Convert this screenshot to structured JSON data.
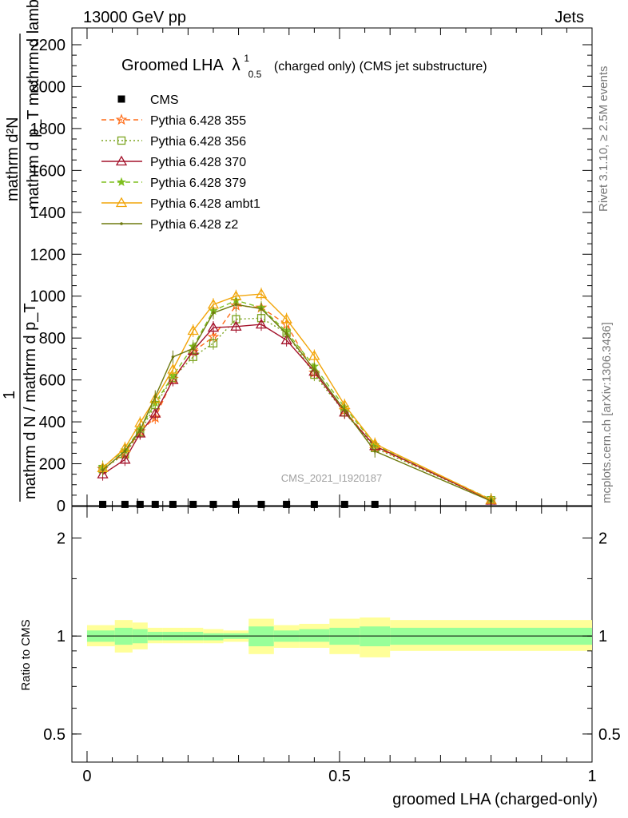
{
  "header": {
    "energy": "13000 GeV pp",
    "process": "Jets"
  },
  "side_labels": {
    "rivet": "Rivet 3.1.10, ≥ 2.5M events",
    "mcplots": "mcplots.cern.ch [arXiv:1306.3436]"
  },
  "chart_data": {
    "type": "line",
    "title_main": "Groomed LHA",
    "title_lambda": "λ",
    "title_sup": "1",
    "title_sub": "0.5",
    "title_suffix": "(charged only) (CMS jet substructure)",
    "watermark": "CMS_2021_I1920187",
    "xlabel": "groomed LHA (charged-only)",
    "ylabel_top_num": "mathrm d²N",
    "ylabel_top_den": "mathrm d p_T mathrm d lambda",
    "ylabel_bottom_num": "1",
    "ylabel_bottom_den": "mathrm d N / mathrm d p_T",
    "ratio_ylabel": "Ratio to CMS",
    "xlim": [
      -0.03,
      1.0
    ],
    "ylim": [
      0,
      2280
    ],
    "ratio_ylim": [
      0.41,
      2.5
    ],
    "x_ticks": [
      {
        "value": 0,
        "label": "0"
      },
      {
        "value": 0.5,
        "label": "0.5"
      },
      {
        "value": 1,
        "label": "1"
      }
    ],
    "y_ticks": [
      {
        "value": 0,
        "label": "0"
      },
      {
        "value": 200,
        "label": "200"
      },
      {
        "value": 400,
        "label": "400"
      },
      {
        "value": 600,
        "label": "600"
      },
      {
        "value": 800,
        "label": "800"
      },
      {
        "value": 1000,
        "label": "1000"
      },
      {
        "value": 1200,
        "label": "1200"
      },
      {
        "value": 1400,
        "label": "1400"
      },
      {
        "value": 1600,
        "label": "1600"
      },
      {
        "value": 1800,
        "label": "1800"
      },
      {
        "value": 2000,
        "label": "2000"
      },
      {
        "value": 2200,
        "label": "2200"
      }
    ],
    "ratio_ticks": [
      {
        "value": 0.5,
        "label": "0.5"
      },
      {
        "value": 1,
        "label": "1"
      },
      {
        "value": 2,
        "label": "2"
      }
    ],
    "x": [
      0.031,
      0.075,
      0.105,
      0.135,
      0.17,
      0.21,
      0.25,
      0.295,
      0.345,
      0.395,
      0.45,
      0.51,
      0.57,
      0.8
    ],
    "data": {
      "name": "CMS",
      "marker": "square",
      "color": "#000000",
      "values": [
        6,
        6,
        6,
        6,
        6,
        6,
        6,
        6,
        6,
        6,
        6,
        6,
        6,
        0
      ]
    },
    "series": [
      {
        "name": "Pythia 6.428 355",
        "color": "#ff6e1a",
        "marker": "star",
        "dash": "6,4",
        "values": [
          175,
          250,
          355,
          420,
          605,
          735,
          805,
          955,
          945,
          865,
          635,
          455,
          280,
          27
        ]
      },
      {
        "name": "Pythia 6.428 356",
        "color": "#7ba31e",
        "marker": "square-open",
        "dash": "2,3",
        "values": [
          175,
          245,
          350,
          480,
          610,
          710,
          775,
          890,
          895,
          825,
          625,
          445,
          275,
          26
        ]
      },
      {
        "name": "Pythia 6.428 370",
        "color": "#a3122a",
        "marker": "triangle-open",
        "dash": "",
        "values": [
          150,
          220,
          345,
          440,
          600,
          740,
          850,
          855,
          865,
          790,
          640,
          445,
          285,
          25
        ]
      },
      {
        "name": "Pythia 6.428 379",
        "color": "#7fbf1f",
        "marker": "star-small",
        "dash": "6,4",
        "values": [
          185,
          265,
          365,
          490,
          620,
          760,
          930,
          980,
          945,
          830,
          665,
          470,
          290,
          30
        ]
      },
      {
        "name": "Pythia 6.428 ambt1",
        "color": "#f2a50a",
        "marker": "triangle-open",
        "dash": "",
        "values": [
          180,
          275,
          395,
          510,
          650,
          835,
          960,
          1000,
          1010,
          890,
          715,
          480,
          295,
          28
        ]
      },
      {
        "name": "Pythia 6.428 z2",
        "color": "#6f7a0f",
        "marker": "dot",
        "dash": "",
        "values": [
          170,
          260,
          360,
          520,
          710,
          750,
          920,
          960,
          940,
          820,
          650,
          455,
          260,
          22
        ]
      }
    ],
    "ratio_bands": {
      "x_edges": [
        0,
        0.055,
        0.09,
        0.12,
        0.15,
        0.19,
        0.23,
        0.27,
        0.32,
        0.37,
        0.42,
        0.48,
        0.54,
        0.6,
        1.0
      ],
      "yellow_lo": [
        0.93,
        0.89,
        0.91,
        0.95,
        0.95,
        0.95,
        0.95,
        0.96,
        0.88,
        0.92,
        0.92,
        0.88,
        0.86,
        0.9
      ],
      "yellow_hi": [
        1.08,
        1.12,
        1.1,
        1.06,
        1.06,
        1.06,
        1.05,
        1.04,
        1.13,
        1.08,
        1.09,
        1.13,
        1.14,
        1.12
      ],
      "green_lo": [
        0.96,
        0.94,
        0.95,
        0.97,
        0.97,
        0.97,
        0.97,
        0.98,
        0.93,
        0.96,
        0.96,
        0.94,
        0.93,
        0.94
      ],
      "green_hi": [
        1.04,
        1.06,
        1.05,
        1.03,
        1.03,
        1.03,
        1.02,
        1.02,
        1.07,
        1.04,
        1.05,
        1.06,
        1.07,
        1.06
      ]
    }
  }
}
